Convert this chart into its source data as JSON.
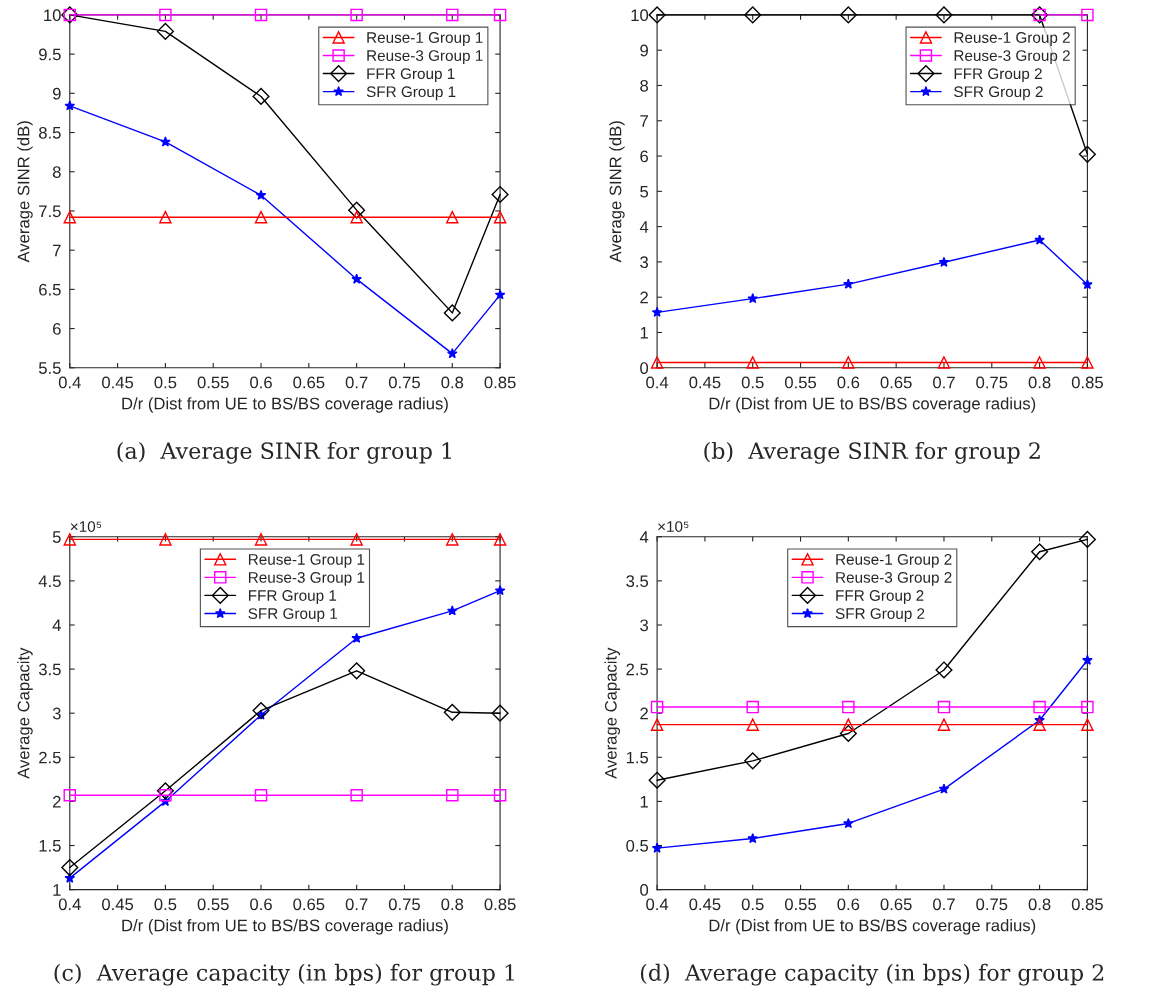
{
  "chart_data": [
    {
      "type": "line",
      "title": "(a)  Average SINR for group 1",
      "xlabel": "D/r (Dist from UE to BS/BS coverage radius)",
      "ylabel": "Average SINR (dB)",
      "x": [
        0.4,
        0.5,
        0.6,
        0.7,
        0.8,
        0.85
      ],
      "series": [
        {
          "name": "Reuse-1 Group 1",
          "color": "#ff0000",
          "marker": "triangle",
          "values": [
            7.42,
            7.42,
            7.42,
            7.42,
            7.42,
            7.42
          ]
        },
        {
          "name": "Reuse-3 Group 1",
          "color": "#ff00ff",
          "marker": "square",
          "values": [
            10,
            10,
            10,
            10,
            10,
            10
          ]
        },
        {
          "name": "FFR Group 1",
          "color": "#000000",
          "marker": "diamond",
          "values": [
            10,
            9.79,
            8.96,
            7.51,
            6.2,
            7.71
          ]
        },
        {
          "name": "SFR Group 1",
          "color": "#0000ff",
          "marker": "star",
          "values": [
            8.84,
            8.38,
            7.7,
            6.63,
            5.68,
            6.43
          ]
        }
      ],
      "xlim": [
        0.4,
        0.85
      ],
      "xticks": [
        0.4,
        0.45,
        0.5,
        0.55,
        0.6,
        0.65,
        0.7,
        0.75,
        0.8,
        0.85
      ],
      "ylim": [
        5.5,
        10
      ],
      "yticks": [
        5.5,
        6,
        6.5,
        7,
        7.5,
        8,
        8.5,
        9,
        9.5,
        10
      ],
      "legend": "top right",
      "grid": false
    },
    {
      "type": "line",
      "title": "(b)  Average SINR for group 2",
      "xlabel": "D/r (Dist from UE to BS/BS coverage radius)",
      "ylabel": "Average SINR (dB)",
      "x": [
        0.4,
        0.5,
        0.6,
        0.7,
        0.8,
        0.85
      ],
      "series": [
        {
          "name": "Reuse-1 Group 2",
          "color": "#ff0000",
          "marker": "triangle",
          "values": [
            0.15,
            0.15,
            0.15,
            0.15,
            0.15,
            0.15
          ]
        },
        {
          "name": "Reuse-3 Group 2",
          "color": "#ff00ff",
          "marker": "square",
          "values": [
            null,
            null,
            null,
            null,
            10,
            10
          ]
        },
        {
          "name": "FFR Group 2",
          "color": "#000000",
          "marker": "diamond",
          "values": [
            10,
            10,
            10,
            10,
            10,
            6.05
          ]
        },
        {
          "name": "SFR Group 2",
          "color": "#0000ff",
          "marker": "star",
          "values": [
            1.57,
            1.96,
            2.37,
            2.99,
            3.62,
            2.36
          ]
        }
      ],
      "xlim": [
        0.4,
        0.85
      ],
      "xticks": [
        0.4,
        0.45,
        0.5,
        0.55,
        0.6,
        0.65,
        0.7,
        0.75,
        0.8,
        0.85
      ],
      "ylim": [
        0,
        10
      ],
      "yticks": [
        0,
        1,
        2,
        3,
        4,
        5,
        6,
        7,
        8,
        9,
        10
      ],
      "legend": "top right",
      "grid": false
    },
    {
      "type": "line",
      "title": "(c)  Average capacity (in bps) for group 1",
      "xlabel": "D/r (Dist from UE to BS/BS coverage radius)",
      "ylabel": "Average Capacity",
      "annotations": [
        "×10⁵"
      ],
      "x": [
        0.4,
        0.5,
        0.6,
        0.7,
        0.8,
        0.85
      ],
      "series": [
        {
          "name": "Reuse-1 Group 1",
          "color": "#ff0000",
          "marker": "triangle",
          "values": [
            4.97,
            4.97,
            4.97,
            4.97,
            4.97,
            4.97
          ]
        },
        {
          "name": "Reuse-3 Group 1",
          "color": "#ff00ff",
          "marker": "square",
          "values": [
            2.07,
            2.07,
            2.07,
            2.07,
            2.07,
            2.07
          ]
        },
        {
          "name": "FFR Group 1",
          "color": "#000000",
          "marker": "diamond",
          "values": [
            1.25,
            2.12,
            3.03,
            3.48,
            3.01,
            3.0
          ]
        },
        {
          "name": "SFR Group 1",
          "color": "#0000ff",
          "marker": "star",
          "values": [
            1.13,
            2.0,
            2.98,
            3.85,
            4.16,
            4.39
          ]
        }
      ],
      "xlim": [
        0.4,
        0.85
      ],
      "xticks": [
        0.4,
        0.45,
        0.5,
        0.55,
        0.6,
        0.65,
        0.7,
        0.75,
        0.8,
        0.85
      ],
      "ylim": [
        1,
        5
      ],
      "yticks": [
        1,
        1.5,
        2,
        2.5,
        3,
        3.5,
        4,
        4.5,
        5
      ],
      "legend": "top",
      "grid": false
    },
    {
      "type": "line",
      "title": "(d)  Average capacity (in bps) for group 2",
      "xlabel": "D/r (Dist from UE to BS/BS coverage radius)",
      "ylabel": "Average Capacity",
      "annotations": [
        "×10⁵"
      ],
      "x": [
        0.4,
        0.5,
        0.6,
        0.7,
        0.8,
        0.85
      ],
      "series": [
        {
          "name": "Reuse-1 Group 2",
          "color": "#ff0000",
          "marker": "triangle",
          "values": [
            1.87,
            1.87,
            1.87,
            1.87,
            1.87,
            1.87
          ]
        },
        {
          "name": "Reuse-3 Group 2",
          "color": "#ff00ff",
          "marker": "square",
          "values": [
            2.07,
            2.07,
            2.07,
            2.07,
            2.07,
            2.07
          ]
        },
        {
          "name": "FFR Group 2",
          "color": "#000000",
          "marker": "diamond",
          "values": [
            1.24,
            1.46,
            1.77,
            2.49,
            3.83,
            3.97
          ]
        },
        {
          "name": "SFR Group 2",
          "color": "#0000ff",
          "marker": "star",
          "values": [
            0.47,
            0.58,
            0.75,
            1.14,
            1.92,
            2.6
          ]
        }
      ],
      "xlim": [
        0.4,
        0.85
      ],
      "xticks": [
        0.4,
        0.45,
        0.5,
        0.55,
        0.6,
        0.65,
        0.7,
        0.75,
        0.8,
        0.85
      ],
      "ylim": [
        0,
        4
      ],
      "yticks": [
        0,
        0.5,
        1,
        1.5,
        2,
        2.5,
        3,
        3.5,
        4
      ],
      "legend": "top",
      "grid": false
    }
  ]
}
